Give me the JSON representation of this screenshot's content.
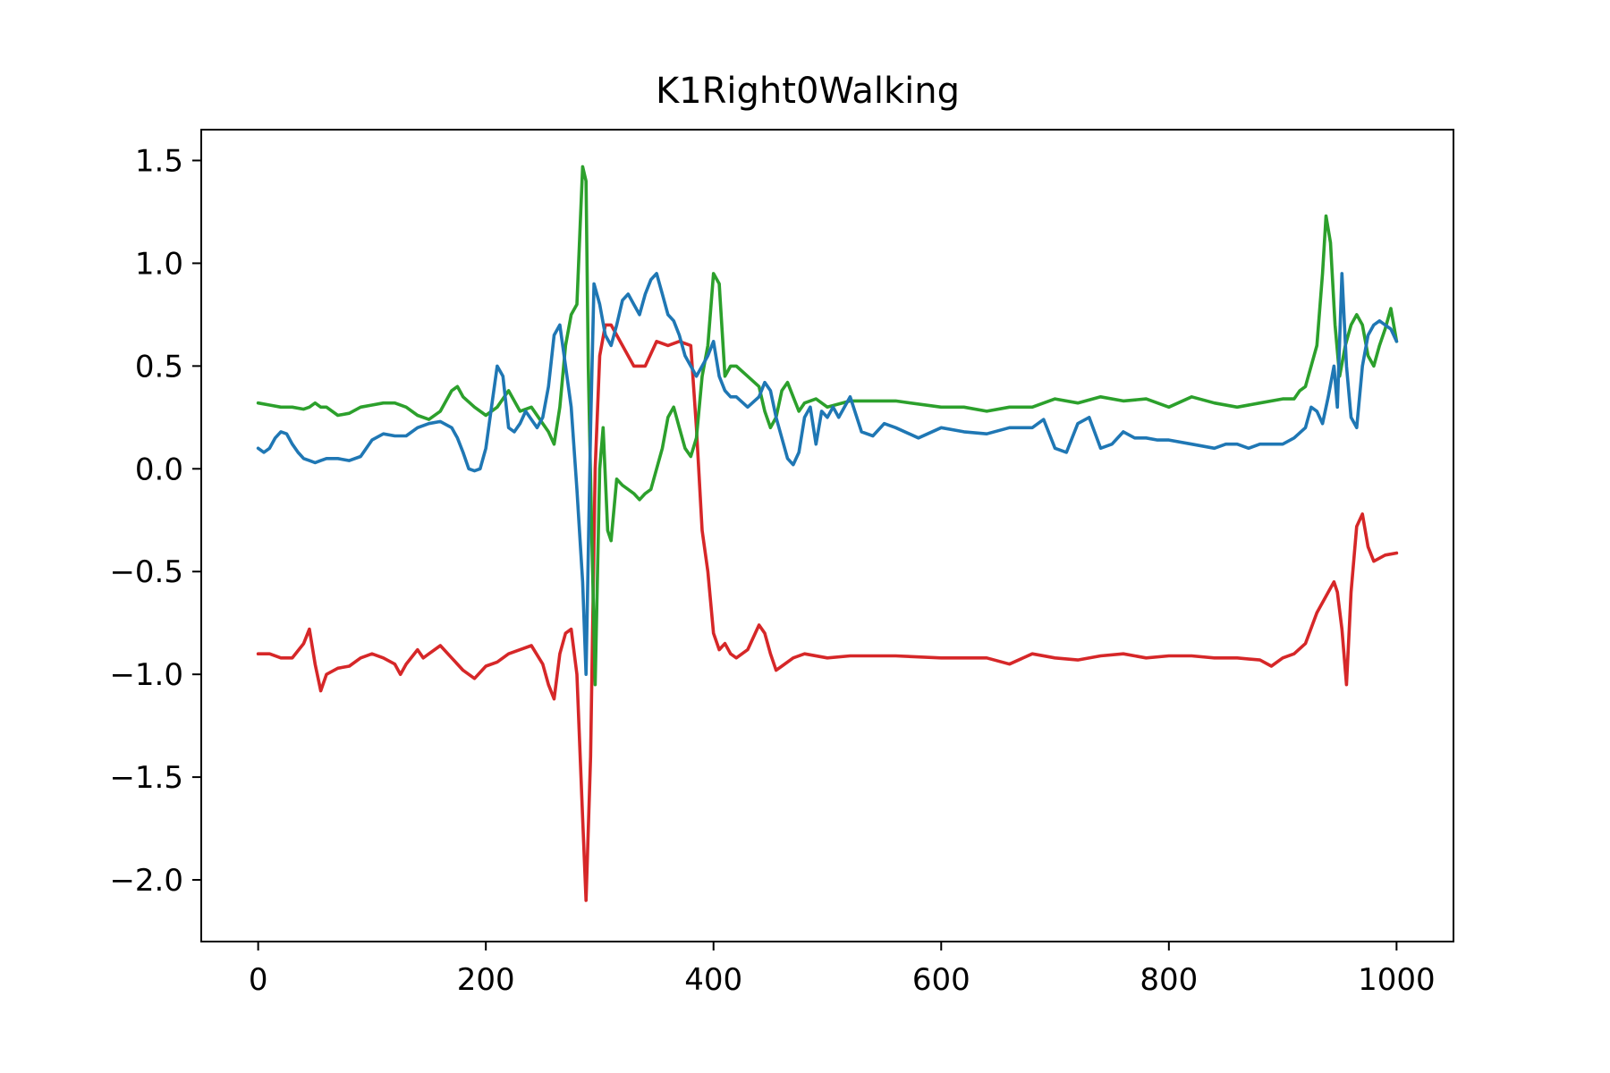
{
  "chart_data": {
    "type": "line",
    "title": "K1Right0Walking",
    "xlabel": "",
    "ylabel": "",
    "xlim": [
      -50,
      1050
    ],
    "ylim": [
      -2.3,
      1.65
    ],
    "xticks": [
      0,
      200,
      400,
      600,
      800,
      1000
    ],
    "xtick_labels": [
      "0",
      "200",
      "400",
      "600",
      "800",
      "1000"
    ],
    "yticks": [
      1.5,
      1.0,
      0.5,
      0.0,
      -0.5,
      -1.0,
      -1.5,
      -2.0
    ],
    "ytick_labels": [
      "1.5",
      "1.0",
      "0.5",
      "0.0",
      "−0.5",
      "−1.0",
      "−1.5",
      "−2.0"
    ],
    "grid": false,
    "legend": "none",
    "series": [
      {
        "color": "#d62728",
        "x": [
          0,
          10,
          20,
          30,
          40,
          45,
          50,
          55,
          60,
          70,
          80,
          90,
          100,
          110,
          120,
          125,
          130,
          140,
          145,
          150,
          160,
          170,
          180,
          190,
          200,
          210,
          220,
          230,
          240,
          250,
          255,
          260,
          265,
          270,
          275,
          280,
          285,
          288,
          292,
          296,
          300,
          305,
          310,
          320,
          330,
          340,
          350,
          360,
          370,
          380,
          385,
          390,
          395,
          400,
          405,
          410,
          415,
          420,
          430,
          440,
          445,
          450,
          455,
          460,
          470,
          480,
          500,
          520,
          560,
          600,
          640,
          660,
          680,
          700,
          720,
          740,
          760,
          780,
          800,
          820,
          840,
          860,
          880,
          890,
          900,
          910,
          920,
          930,
          940,
          945,
          948,
          952,
          956,
          960,
          965,
          970,
          975,
          980,
          990,
          1000
        ],
        "y": [
          -0.9,
          -0.9,
          -0.92,
          -0.92,
          -0.85,
          -0.78,
          -0.95,
          -1.08,
          -1.0,
          -0.97,
          -0.96,
          -0.92,
          -0.9,
          -0.92,
          -0.95,
          -1.0,
          -0.95,
          -0.88,
          -0.92,
          -0.9,
          -0.86,
          -0.92,
          -0.98,
          -1.02,
          -0.96,
          -0.94,
          -0.9,
          -0.88,
          -0.86,
          -0.95,
          -1.05,
          -1.12,
          -0.9,
          -0.8,
          -0.78,
          -1.0,
          -1.7,
          -2.1,
          -1.4,
          0.0,
          0.55,
          0.7,
          0.7,
          0.6,
          0.5,
          0.5,
          0.62,
          0.6,
          0.62,
          0.6,
          0.2,
          -0.3,
          -0.5,
          -0.8,
          -0.88,
          -0.85,
          -0.9,
          -0.92,
          -0.88,
          -0.76,
          -0.8,
          -0.9,
          -0.98,
          -0.96,
          -0.92,
          -0.9,
          -0.92,
          -0.91,
          -0.91,
          -0.92,
          -0.92,
          -0.95,
          -0.9,
          -0.92,
          -0.93,
          -0.91,
          -0.9,
          -0.92,
          -0.91,
          -0.91,
          -0.92,
          -0.92,
          -0.93,
          -0.96,
          -0.92,
          -0.9,
          -0.85,
          -0.7,
          -0.6,
          -0.55,
          -0.6,
          -0.78,
          -1.05,
          -0.6,
          -0.28,
          -0.22,
          -0.38,
          -0.45,
          -0.42,
          -0.41
        ]
      },
      {
        "color": "#2ca02c",
        "x": [
          0,
          10,
          20,
          30,
          40,
          45,
          50,
          55,
          60,
          70,
          80,
          90,
          100,
          110,
          120,
          130,
          140,
          150,
          160,
          170,
          175,
          180,
          190,
          200,
          210,
          220,
          230,
          240,
          250,
          255,
          260,
          265,
          270,
          275,
          280,
          283,
          285,
          288,
          290,
          293,
          296,
          300,
          303,
          307,
          310,
          315,
          320,
          325,
          330,
          335,
          340,
          345,
          350,
          355,
          360,
          365,
          370,
          375,
          380,
          385,
          390,
          395,
          400,
          405,
          410,
          415,
          420,
          430,
          440,
          445,
          450,
          455,
          460,
          465,
          470,
          475,
          480,
          490,
          500,
          520,
          560,
          600,
          620,
          640,
          660,
          680,
          700,
          720,
          740,
          760,
          780,
          800,
          820,
          840,
          860,
          880,
          900,
          910,
          915,
          920,
          925,
          930,
          935,
          938,
          942,
          946,
          950,
          955,
          960,
          965,
          970,
          975,
          980,
          985,
          990,
          995,
          1000
        ],
        "y": [
          0.32,
          0.31,
          0.3,
          0.3,
          0.29,
          0.3,
          0.32,
          0.3,
          0.3,
          0.26,
          0.27,
          0.3,
          0.31,
          0.32,
          0.32,
          0.3,
          0.26,
          0.24,
          0.28,
          0.38,
          0.4,
          0.35,
          0.3,
          0.26,
          0.3,
          0.38,
          0.28,
          0.3,
          0.22,
          0.18,
          0.12,
          0.3,
          0.6,
          0.75,
          0.8,
          1.2,
          1.47,
          1.4,
          0.5,
          -0.3,
          -1.05,
          0.0,
          0.2,
          -0.3,
          -0.35,
          -0.05,
          -0.08,
          -0.1,
          -0.12,
          -0.15,
          -0.12,
          -0.1,
          0.0,
          0.1,
          0.25,
          0.3,
          0.2,
          0.1,
          0.06,
          0.15,
          0.45,
          0.6,
          0.95,
          0.9,
          0.45,
          0.5,
          0.5,
          0.45,
          0.4,
          0.28,
          0.2,
          0.25,
          0.38,
          0.42,
          0.35,
          0.28,
          0.32,
          0.34,
          0.3,
          0.33,
          0.33,
          0.3,
          0.3,
          0.28,
          0.3,
          0.3,
          0.34,
          0.32,
          0.35,
          0.33,
          0.34,
          0.3,
          0.35,
          0.32,
          0.3,
          0.32,
          0.34,
          0.34,
          0.38,
          0.4,
          0.5,
          0.6,
          0.95,
          1.23,
          1.1,
          0.7,
          0.45,
          0.6,
          0.7,
          0.75,
          0.7,
          0.55,
          0.5,
          0.6,
          0.68,
          0.78,
          0.62
        ]
      },
      {
        "color": "#1f77b4",
        "x": [
          0,
          5,
          10,
          15,
          20,
          25,
          30,
          35,
          40,
          45,
          50,
          55,
          60,
          70,
          80,
          90,
          100,
          110,
          120,
          130,
          140,
          150,
          160,
          170,
          175,
          180,
          185,
          190,
          195,
          200,
          205,
          210,
          215,
          220,
          225,
          230,
          235,
          240,
          245,
          250,
          255,
          260,
          265,
          270,
          275,
          280,
          285,
          288,
          292,
          295,
          300,
          305,
          310,
          315,
          320,
          325,
          330,
          335,
          340,
          345,
          350,
          355,
          360,
          365,
          370,
          375,
          380,
          385,
          390,
          395,
          400,
          405,
          410,
          415,
          420,
          430,
          440,
          445,
          450,
          455,
          460,
          465,
          470,
          475,
          480,
          485,
          490,
          495,
          500,
          505,
          510,
          515,
          520,
          530,
          540,
          550,
          560,
          580,
          600,
          620,
          640,
          660,
          680,
          690,
          700,
          710,
          720,
          730,
          740,
          750,
          760,
          770,
          780,
          790,
          800,
          820,
          840,
          850,
          860,
          870,
          880,
          900,
          910,
          920,
          925,
          930,
          935,
          940,
          945,
          948,
          952,
          956,
          960,
          965,
          970,
          975,
          980,
          985,
          990,
          995,
          1000
        ],
        "y": [
          0.1,
          0.08,
          0.1,
          0.15,
          0.18,
          0.17,
          0.12,
          0.08,
          0.05,
          0.04,
          0.03,
          0.04,
          0.05,
          0.05,
          0.04,
          0.06,
          0.14,
          0.17,
          0.16,
          0.16,
          0.2,
          0.22,
          0.23,
          0.2,
          0.15,
          0.08,
          0.0,
          -0.01,
          0.0,
          0.1,
          0.3,
          0.5,
          0.45,
          0.2,
          0.18,
          0.22,
          0.28,
          0.24,
          0.2,
          0.25,
          0.4,
          0.65,
          0.7,
          0.5,
          0.3,
          -0.1,
          -0.55,
          -1.0,
          0.2,
          0.9,
          0.8,
          0.65,
          0.6,
          0.7,
          0.82,
          0.85,
          0.8,
          0.75,
          0.85,
          0.92,
          0.95,
          0.85,
          0.75,
          0.72,
          0.65,
          0.55,
          0.5,
          0.45,
          0.5,
          0.55,
          0.62,
          0.45,
          0.38,
          0.35,
          0.35,
          0.3,
          0.35,
          0.42,
          0.38,
          0.25,
          0.15,
          0.05,
          0.02,
          0.08,
          0.25,
          0.3,
          0.12,
          0.28,
          0.25,
          0.3,
          0.25,
          0.3,
          0.35,
          0.18,
          0.16,
          0.22,
          0.2,
          0.15,
          0.2,
          0.18,
          0.17,
          0.2,
          0.2,
          0.24,
          0.1,
          0.08,
          0.22,
          0.25,
          0.1,
          0.12,
          0.18,
          0.15,
          0.15,
          0.14,
          0.14,
          0.12,
          0.1,
          0.12,
          0.12,
          0.1,
          0.12,
          0.12,
          0.15,
          0.2,
          0.3,
          0.28,
          0.22,
          0.35,
          0.5,
          0.3,
          0.95,
          0.5,
          0.25,
          0.2,
          0.5,
          0.65,
          0.7,
          0.72,
          0.7,
          0.68,
          0.62
        ]
      }
    ]
  }
}
